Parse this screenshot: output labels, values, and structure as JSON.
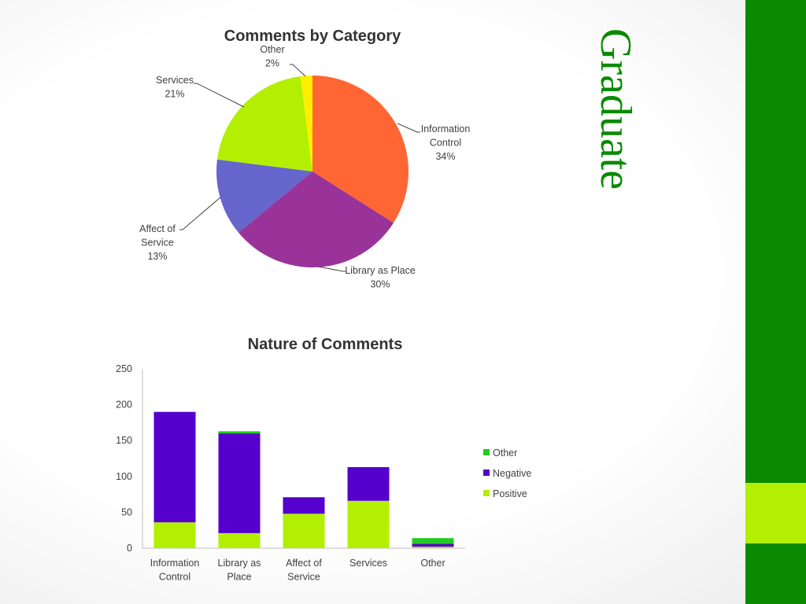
{
  "slide_title": "Graduate",
  "colors": {
    "sidebar": "#0a8a00",
    "sidebar_accent": "#b3ef00",
    "title_text": "#0a8a00"
  },
  "chart_data": [
    {
      "type": "pie",
      "title": "Comments by Category",
      "slices": [
        {
          "label_lines": [
            "Information",
            "Control"
          ],
          "pct_label": "34%",
          "value": 34,
          "color": "#ff6633"
        },
        {
          "label_lines": [
            "Library as Place"
          ],
          "pct_label": "30%",
          "value": 30,
          "color": "#993399"
        },
        {
          "label_lines": [
            "Affect of",
            "Service"
          ],
          "pct_label": "13%",
          "value": 13,
          "color": "#6666cc"
        },
        {
          "label_lines": [
            "Services"
          ],
          "pct_label": "21%",
          "value": 21,
          "color": "#b3ef00"
        },
        {
          "label_lines": [
            "Other"
          ],
          "pct_label": "2%",
          "value": 2,
          "color": "#ffee00"
        }
      ]
    },
    {
      "type": "bar",
      "stacked": true,
      "title": "Nature of Comments",
      "categories": [
        [
          "Information",
          "Control"
        ],
        [
          "Library as",
          "Place"
        ],
        [
          "Affect of",
          "Service"
        ],
        [
          "Services"
        ],
        [
          "Other"
        ]
      ],
      "ylim": [
        0,
        250
      ],
      "yticks": [
        0,
        50,
        100,
        150,
        200,
        250
      ],
      "legend_position": "right",
      "series": [
        {
          "name": "Positive",
          "color": "#b3ef00",
          "values": [
            36,
            21,
            48,
            66,
            2
          ]
        },
        {
          "name": "Negative",
          "color": "#5500cc",
          "values": [
            154,
            139,
            23,
            47,
            4
          ]
        },
        {
          "name": "Other",
          "color": "#22cc22",
          "values": [
            0,
            3,
            0,
            0,
            8
          ]
        }
      ],
      "legend_order": [
        "Other",
        "Negative",
        "Positive"
      ]
    }
  ]
}
